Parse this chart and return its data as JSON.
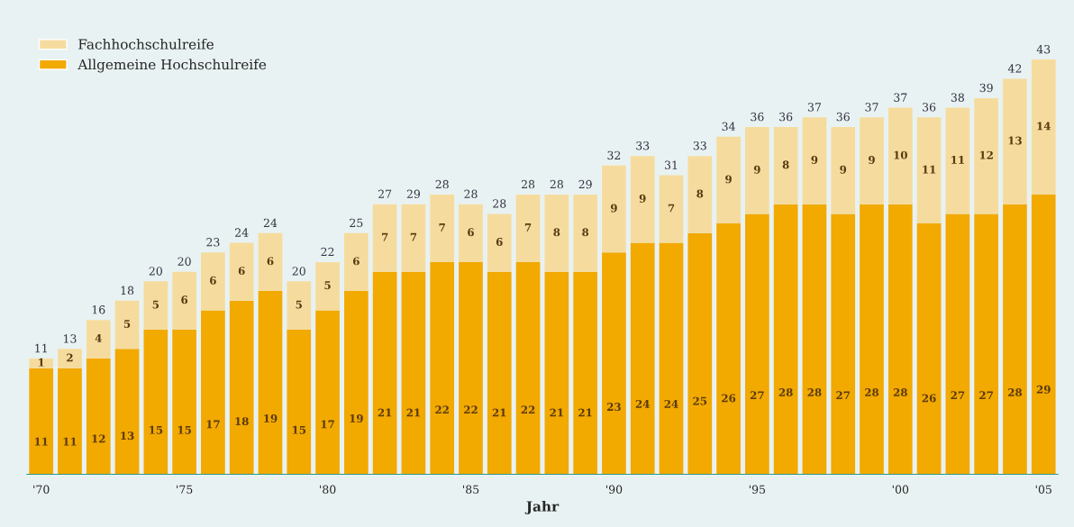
{
  "chart_data": {
    "type": "bar",
    "stacked": true,
    "xlabel": "Jahr",
    "categories": [
      "'70",
      null,
      null,
      null,
      null,
      "'75",
      null,
      null,
      null,
      null,
      "'80",
      null,
      null,
      null,
      null,
      "'85",
      null,
      null,
      null,
      null,
      "'90",
      null,
      null,
      null,
      null,
      "'95",
      null,
      null,
      null,
      null,
      "'00",
      null,
      null,
      null,
      null,
      "'05"
    ],
    "series": [
      {
        "name": "Allgemeine Hochschulreife",
        "color": "#f2a900",
        "values": [
          11,
          11,
          12,
          13,
          15,
          15,
          17,
          18,
          19,
          15,
          17,
          19,
          21,
          21,
          22,
          22,
          21,
          22,
          21,
          21,
          23,
          24,
          24,
          25,
          26,
          27,
          28,
          28,
          27,
          28,
          28,
          26,
          27,
          27,
          28,
          29
        ]
      },
      {
        "name": "Fachhochschulreife",
        "color": "#f5dc9e",
        "values": [
          1,
          2,
          4,
          5,
          5,
          6,
          6,
          6,
          6,
          5,
          5,
          6,
          7,
          7,
          7,
          6,
          6,
          7,
          8,
          8,
          9,
          9,
          7,
          8,
          9,
          9,
          8,
          9,
          9,
          9,
          10,
          11,
          11,
          12,
          13,
          14
        ]
      }
    ],
    "totals": [
      "11",
      "13",
      "16",
      "18",
      "20",
      "20",
      "23",
      "24",
      "24",
      "20",
      "22",
      "25",
      "27",
      "29",
      "28",
      "28",
      "28",
      "28",
      "28",
      "29",
      "32",
      "33",
      "31",
      "33",
      "34",
      "36",
      "36",
      "37",
      "36",
      "37",
      "37",
      "36",
      "38",
      "39",
      "42",
      "43"
    ],
    "data_labels": true,
    "legend": "top left",
    "grid": false
  }
}
